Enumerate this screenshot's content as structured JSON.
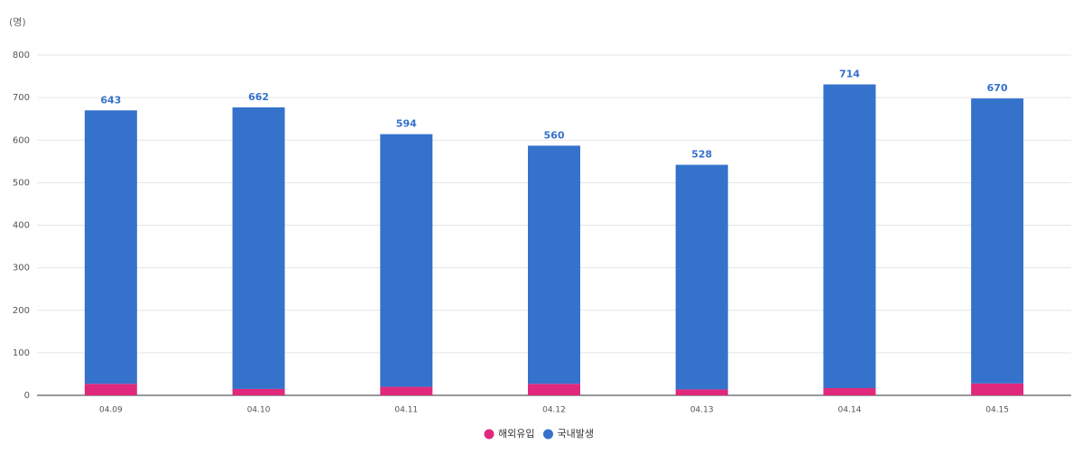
{
  "chart_data": {
    "type": "stacked-bar",
    "y_label": "(명)",
    "categories": [
      "04.09",
      "04.10",
      "04.11",
      "04.12",
      "04.13",
      "04.14",
      "04.15"
    ],
    "series": [
      {
        "name": "해외유입",
        "color": "#e0287d",
        "values": [
          27,
          15,
          20,
          27,
          14,
          17,
          28
        ]
      },
      {
        "name": "국내발생",
        "color": "#3572cc",
        "values": [
          643,
          662,
          594,
          560,
          528,
          714,
          670
        ]
      }
    ],
    "ylim": [
      0,
      800
    ],
    "yticks": [
      0,
      100,
      200,
      300,
      400,
      500,
      600,
      700,
      800
    ],
    "grid": true,
    "legend": "bottom"
  }
}
